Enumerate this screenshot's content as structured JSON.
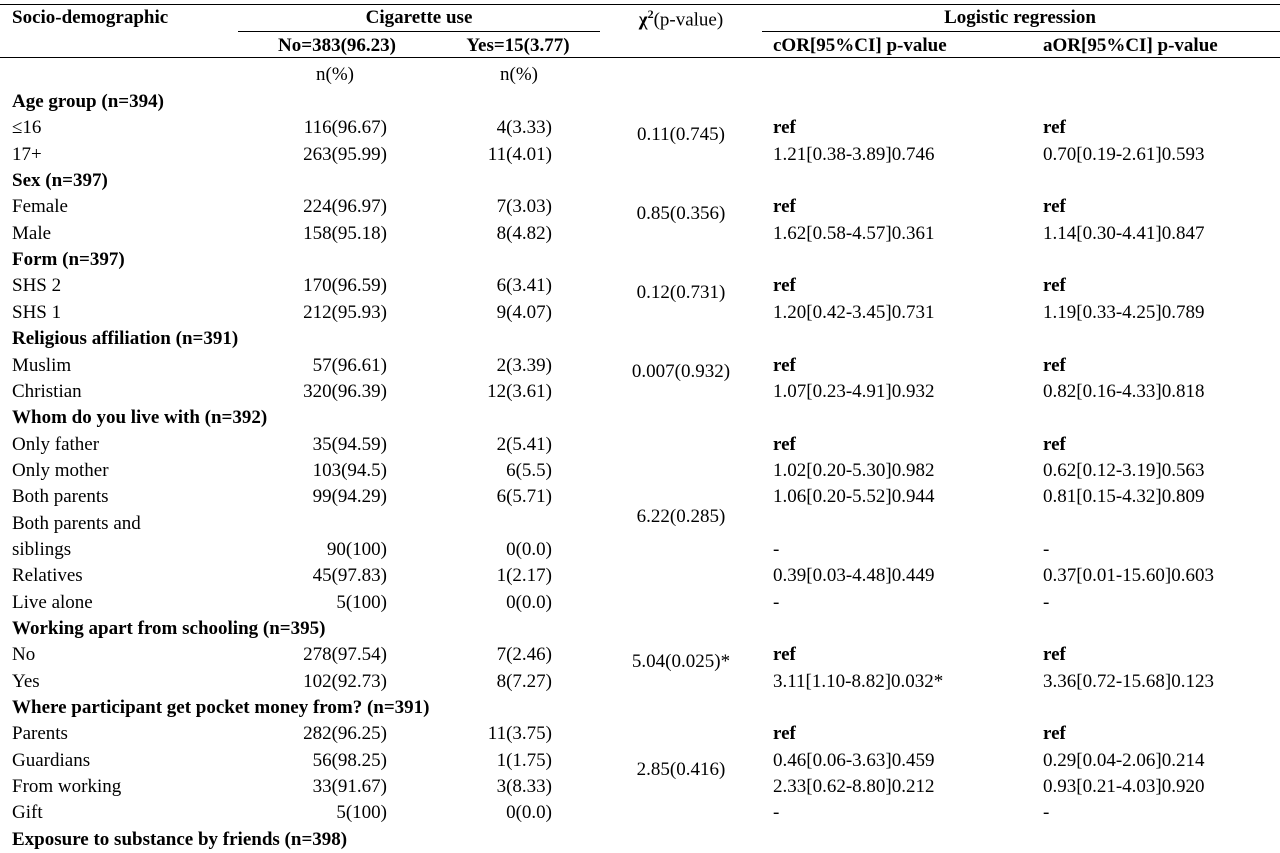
{
  "header": {
    "col_socio": "Socio-demographic",
    "col_cig": "Cigarette use",
    "col_chi_sym": "χ",
    "col_chi_sup": "2",
    "col_chi_rest": "(p-value)",
    "col_logit": "Logistic regression",
    "sub_no": "No=383(96.23)",
    "sub_yes": "Yes=15(3.77)",
    "sub_cor": "cOR[95%CI] p-value",
    "sub_aor": "aOR[95%CI] p-value",
    "unit_no": "n(%)",
    "unit_yes": "n(%)"
  },
  "rows": [
    {
      "label": "Age group (n=394)",
      "bold": true
    },
    {
      "label": "≤16",
      "no": "116(96.67)",
      "yes": "4(3.33)",
      "cor": "ref",
      "aor": "ref",
      "ref": true
    },
    {
      "label": "17+",
      "no": "263(95.99)",
      "yes": "11(4.01)",
      "cor": "1.21[0.38-3.89]0.746",
      "aor": "0.70[0.19-2.61]0.593"
    },
    {
      "label": "Sex (n=397)",
      "bold": true
    },
    {
      "label": "Female",
      "no": "224(96.97)",
      "yes": "7(3.03)",
      "cor": "ref",
      "aor": "ref",
      "ref": true
    },
    {
      "label": "Male",
      "no": "158(95.18)",
      "yes": "8(4.82)",
      "cor": "1.62[0.58-4.57]0.361",
      "aor": "1.14[0.30-4.41]0.847"
    },
    {
      "label": "Form (n=397)",
      "bold": true
    },
    {
      "label": "SHS 2",
      "no": "170(96.59)",
      "yes": "6(3.41)",
      "cor": "ref",
      "aor": "ref",
      "ref": true
    },
    {
      "label": "SHS 1",
      "no": "212(95.93)",
      "yes": "9(4.07)",
      "cor": "1.20[0.42-3.45]0.731",
      "aor": "1.19[0.33-4.25]0.789"
    },
    {
      "label": "Religious affiliation (n=391)",
      "bold": true
    },
    {
      "label": "Muslim",
      "no": "57(96.61)",
      "yes": "2(3.39)",
      "cor": "ref",
      "aor": "ref",
      "ref": true
    },
    {
      "label": "Christian",
      "no": "320(96.39)",
      "yes": "12(3.61)",
      "cor": "1.07[0.23-4.91]0.932",
      "aor": "0.82[0.16-4.33]0.818"
    },
    {
      "label": "Whom do you live with (n=392)",
      "bold": true
    },
    {
      "label": "Only father",
      "no": "35(94.59)",
      "yes": "2(5.41)",
      "cor": "ref",
      "aor": "ref",
      "ref": true
    },
    {
      "label": "Only mother",
      "no": "103(94.5)",
      "yes": "6(5.5)",
      "cor": "1.02[0.20-5.30]0.982",
      "aor": "0.62[0.12-3.19]0.563"
    },
    {
      "label": "Both parents",
      "no": "99(94.29)",
      "yes": "6(5.71)",
      "cor": "1.06[0.20-5.52]0.944",
      "aor": "0.81[0.15-4.32]0.809"
    },
    {
      "label": "Both parents and"
    },
    {
      "label": "siblings",
      "no": "90(100)",
      "yes": "0(0.0)",
      "cor": "-",
      "aor": "-"
    },
    {
      "label": "Relatives",
      "no": "45(97.83)",
      "yes": "1(2.17)",
      "cor": "0.39[0.03-4.48]0.449",
      "aor": "0.37[0.01-15.60]0.603"
    },
    {
      "label": "Live alone",
      "no": "5(100)",
      "yes": "0(0.0)",
      "cor": "-",
      "aor": "-"
    },
    {
      "label": "Working apart from schooling (n=395)",
      "bold": true
    },
    {
      "label": "No",
      "no": "278(97.54)",
      "yes": "7(2.46)",
      "cor": "ref",
      "aor": "ref",
      "ref": true
    },
    {
      "label": "Yes",
      "no": "102(92.73)",
      "yes": "8(7.27)",
      "cor": "3.11[1.10-8.82]0.032*",
      "aor": "3.36[0.72-15.68]0.123"
    },
    {
      "label": "Where participant get pocket money from? (n=391)",
      "bold": true
    },
    {
      "label": "Parents",
      "no": "282(96.25)",
      "yes": "11(3.75)",
      "cor": "ref",
      "aor": "ref",
      "ref": true
    },
    {
      "label": "Guardians",
      "no": "56(98.25)",
      "yes": "1(1.75)",
      "cor": "0.46[0.06-3.63]0.459",
      "aor": "0.29[0.04-2.06]0.214"
    },
    {
      "label": "From working",
      "no": "33(91.67)",
      "yes": "3(8.33)",
      "cor": "2.33[0.62-8.80]0.212",
      "aor": "0.93[0.21-4.03]0.920"
    },
    {
      "label": "Gift",
      "no": "5(100)",
      "yes": "0(0.0)",
      "cor": "-",
      "aor": "-"
    },
    {
      "label": "Exposure to substance by friends (n=398)",
      "bold": true
    }
  ],
  "chi": [
    {
      "value": "0.11(0.745)"
    },
    {
      "value": "0.85(0.356)"
    },
    {
      "value": "0.12(0.731)"
    },
    {
      "value": "0.007(0.932)"
    },
    {
      "value": "6.22(0.285)"
    },
    {
      "value": "5.04(0.025)*"
    },
    {
      "value": "2.85(0.416)"
    }
  ]
}
